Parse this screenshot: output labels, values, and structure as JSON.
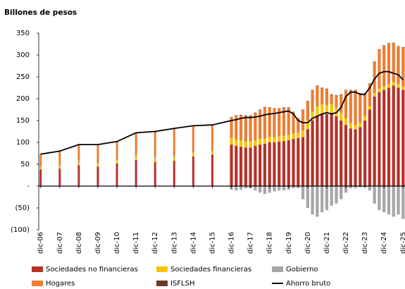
{
  "chart_data": {
    "type": "bar",
    "stacked": true,
    "title": "Billones de pesos",
    "x": [
      2006,
      2007,
      2008,
      2009,
      2010,
      2011,
      2012,
      2013,
      2014,
      2015,
      2016,
      2016.25,
      2016.5,
      2016.75,
      2017,
      2017.25,
      2017.5,
      2017.75,
      2018,
      2018.25,
      2018.5,
      2018.75,
      2019,
      2019.25,
      2019.5,
      2019.75,
      2020,
      2020.25,
      2020.5,
      2020.75,
      2021,
      2021.25,
      2021.5,
      2021.75,
      2022,
      2022.25,
      2022.5,
      2022.75,
      2023,
      2023.25,
      2023.5,
      2023.75,
      2024,
      2024.25,
      2024.5,
      2024.75,
      2025
    ],
    "xlim": [
      2005.9,
      2025.1
    ],
    "xticks": [
      {
        "value": 2006,
        "label": "dic-06"
      },
      {
        "value": 2007,
        "label": "dic-07"
      },
      {
        "value": 2008,
        "label": "dic-08"
      },
      {
        "value": 2009,
        "label": "dic-09"
      },
      {
        "value": 2010,
        "label": "dic-10"
      },
      {
        "value": 2011,
        "label": "dic-11"
      },
      {
        "value": 2012,
        "label": "dic-12"
      },
      {
        "value": 2013,
        "label": "dic-13"
      },
      {
        "value": 2014,
        "label": "dic-14"
      },
      {
        "value": 2015,
        "label": "dic-15"
      },
      {
        "value": 2016,
        "label": "dic-16"
      },
      {
        "value": 2017,
        "label": "dic-17"
      },
      {
        "value": 2018,
        "label": "dic-18"
      },
      {
        "value": 2019,
        "label": "dic-19"
      },
      {
        "value": 2020,
        "label": "dic-20"
      },
      {
        "value": 2021,
        "label": "dic-21"
      },
      {
        "value": 2022,
        "label": "dic-22"
      },
      {
        "value": 2023,
        "label": "dic-23"
      },
      {
        "value": 2024,
        "label": "dic-24"
      },
      {
        "value": 2025,
        "label": "dic-25"
      }
    ],
    "ylim": [
      -100,
      350
    ],
    "yticks": [
      {
        "value": -100,
        "label": "(100)"
      },
      {
        "value": -50,
        "label": "(50)"
      },
      {
        "value": 0,
        "label": "-"
      },
      50,
      100,
      150,
      200,
      250,
      300,
      350
    ],
    "legend": "bottom",
    "series": [
      {
        "name": "Sociedades no financieras",
        "color": "#b5322a",
        "values": [
          38,
          40,
          48,
          45,
          52,
          60,
          55,
          58,
          68,
          72,
          95,
          92,
          90,
          88,
          88,
          92,
          95,
          97,
          100,
          100,
          102,
          103,
          105,
          108,
          110,
          112,
          130,
          150,
          160,
          165,
          165,
          168,
          160,
          150,
          140,
          132,
          130,
          135,
          150,
          175,
          205,
          215,
          220,
          225,
          230,
          225,
          220
        ]
      },
      {
        "name": "Sociedades financieras",
        "color": "#f5c400",
        "values": [
          5,
          5,
          6,
          6,
          7,
          8,
          8,
          8,
          8,
          8,
          15,
          15,
          15,
          14,
          14,
          13,
          13,
          12,
          12,
          12,
          12,
          12,
          12,
          12,
          12,
          15,
          20,
          20,
          22,
          22,
          20,
          20,
          20,
          18,
          15,
          12,
          10,
          10,
          10,
          8,
          8,
          8,
          8,
          8,
          8,
          8,
          8
        ]
      },
      {
        "name": "Gobierno",
        "color": "#a6a6a6",
        "values": [
          3,
          4,
          5,
          3,
          2,
          4,
          5,
          4,
          2,
          2,
          -8,
          -10,
          -8,
          -5,
          -5,
          -10,
          -15,
          -18,
          -15,
          -12,
          -10,
          -10,
          -8,
          -5,
          -5,
          -30,
          -50,
          -65,
          -70,
          -60,
          -55,
          -45,
          -40,
          -30,
          -15,
          -5,
          -5,
          -3,
          -2,
          -10,
          -40,
          -55,
          -60,
          -65,
          -70,
          -65,
          -75
        ]
      },
      {
        "name": "Hogares",
        "color": "#ed7d31",
        "values": [
          26,
          30,
          35,
          40,
          40,
          49,
          56,
          61,
          59,
          57,
          47,
          54,
          57,
          59,
          59,
          62,
          66,
          71,
          67,
          65,
          63,
          64,
          62,
          49,
          32,
          47,
          44,
          49,
          47,
          37,
          37,
          21,
          27,
          41,
          64,
          75,
          79,
          67,
          51,
          51,
          71,
          89,
          93,
          93,
          89,
          86,
          89
        ]
      },
      {
        "name": "ISFLSH",
        "color": "#6b3a2a",
        "values": [
          1,
          1,
          1,
          1,
          1,
          1,
          1,
          1,
          1,
          1,
          1,
          1,
          1,
          1,
          1,
          1,
          1,
          1,
          1,
          1,
          1,
          1,
          1,
          1,
          1,
          1,
          1,
          1,
          1,
          1,
          1,
          1,
          1,
          1,
          1,
          1,
          1,
          1,
          1,
          1,
          1,
          1,
          1,
          1,
          1,
          1,
          1
        ]
      },
      {
        "name": "Ahorro bruto",
        "type": "line",
        "color": "#000000",
        "values": [
          73,
          80,
          95,
          95,
          102,
          122,
          125,
          132,
          138,
          140,
          150,
          152,
          155,
          157,
          157,
          158,
          160,
          163,
          165,
          166,
          168,
          170,
          172,
          165,
          150,
          145,
          145,
          155,
          160,
          165,
          168,
          165,
          168,
          180,
          205,
          215,
          215,
          210,
          210,
          225,
          245,
          258,
          262,
          262,
          258,
          255,
          243
        ]
      }
    ]
  }
}
